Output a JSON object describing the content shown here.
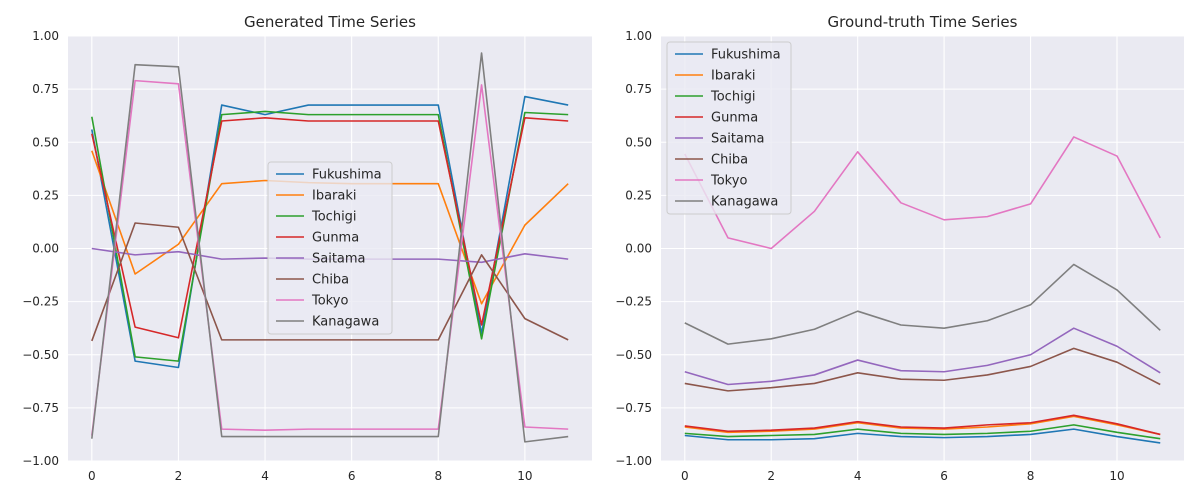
{
  "colors": {
    "Fukushima": "#1f77b4",
    "Ibaraki": "#ff7f0e",
    "Tochigi": "#2ca02c",
    "Gunma": "#d62728",
    "Saitama": "#9467bd",
    "Chiba": "#8c564b",
    "Tokyo": "#e377c2",
    "Kanagawa": "#7f7f7f"
  },
  "chart_data": [
    {
      "type": "line",
      "title": "Generated Time Series",
      "xlabel": "",
      "ylabel": "",
      "xlim": [
        -0.55,
        11.55
      ],
      "ylim": [
        -1.0,
        1.0
      ],
      "x_ticks": [
        0,
        2,
        4,
        6,
        8,
        10
      ],
      "y_ticks": [
        -1.0,
        -0.75,
        -0.5,
        -0.25,
        0.0,
        0.25,
        0.5,
        0.75,
        1.0
      ],
      "y_tick_labels": [
        "−1.00",
        "−0.75",
        "−0.50",
        "−0.25",
        "0.00",
        "0.25",
        "0.50",
        "0.75",
        "1.00"
      ],
      "grid": true,
      "legend_position": "center",
      "x": [
        0,
        1,
        2,
        3,
        4,
        5,
        6,
        7,
        8,
        9,
        10,
        11
      ],
      "series": [
        {
          "name": "Fukushima",
          "values": [
            0.56,
            -0.53,
            -0.56,
            0.675,
            0.63,
            0.675,
            0.675,
            0.675,
            0.675,
            -0.4,
            0.715,
            0.675
          ]
        },
        {
          "name": "Ibaraki",
          "values": [
            0.46,
            -0.12,
            0.02,
            0.305,
            0.32,
            0.31,
            0.305,
            0.305,
            0.305,
            -0.26,
            0.11,
            0.305
          ]
        },
        {
          "name": "Tochigi",
          "values": [
            0.62,
            -0.51,
            -0.53,
            0.63,
            0.645,
            0.63,
            0.63,
            0.63,
            0.63,
            -0.425,
            0.64,
            0.63
          ]
        },
        {
          "name": "Gunma",
          "values": [
            0.54,
            -0.37,
            -0.42,
            0.6,
            0.615,
            0.6,
            0.6,
            0.6,
            0.6,
            -0.36,
            0.615,
            0.6
          ]
        },
        {
          "name": "Saitama",
          "values": [
            0.0,
            -0.03,
            -0.015,
            -0.05,
            -0.045,
            -0.05,
            -0.05,
            -0.05,
            -0.05,
            -0.065,
            -0.025,
            -0.05
          ]
        },
        {
          "name": "Chiba",
          "values": [
            -0.435,
            0.12,
            0.1,
            -0.43,
            -0.43,
            -0.43,
            -0.43,
            -0.43,
            -0.43,
            -0.03,
            -0.33,
            -0.43
          ]
        },
        {
          "name": "Tokyo",
          "values": [
            -0.88,
            0.79,
            0.775,
            -0.85,
            -0.855,
            -0.85,
            -0.85,
            -0.85,
            -0.85,
            0.77,
            -0.84,
            -0.85
          ]
        },
        {
          "name": "Kanagawa",
          "values": [
            -0.895,
            0.865,
            0.855,
            -0.885,
            -0.885,
            -0.885,
            -0.885,
            -0.885,
            -0.885,
            0.92,
            -0.91,
            -0.885
          ]
        }
      ]
    },
    {
      "type": "line",
      "title": "Ground-truth Time Series",
      "xlabel": "",
      "ylabel": "",
      "xlim": [
        -0.55,
        11.55
      ],
      "ylim": [
        -1.0,
        1.0
      ],
      "x_ticks": [
        0,
        2,
        4,
        6,
        8,
        10
      ],
      "y_ticks": [
        -1.0,
        -0.75,
        -0.5,
        -0.25,
        0.0,
        0.25,
        0.5,
        0.75,
        1.0
      ],
      "y_tick_labels": [
        "−1.00",
        "−0.75",
        "−0.50",
        "−0.25",
        "0.00",
        "0.25",
        "0.50",
        "0.75",
        "1.00"
      ],
      "grid": true,
      "legend_position": "top-left",
      "x": [
        0,
        1,
        2,
        3,
        4,
        5,
        6,
        7,
        8,
        9,
        10,
        11
      ],
      "series": [
        {
          "name": "Fukushima",
          "values": [
            -0.88,
            -0.9,
            -0.9,
            -0.895,
            -0.87,
            -0.885,
            -0.89,
            -0.885,
            -0.875,
            -0.85,
            -0.885,
            -0.915
          ]
        },
        {
          "name": "Ibaraki",
          "values": [
            -0.84,
            -0.865,
            -0.86,
            -0.85,
            -0.82,
            -0.845,
            -0.85,
            -0.84,
            -0.825,
            -0.79,
            -0.83,
            -0.875
          ]
        },
        {
          "name": "Tochigi",
          "values": [
            -0.87,
            -0.885,
            -0.88,
            -0.875,
            -0.85,
            -0.87,
            -0.875,
            -0.87,
            -0.86,
            -0.83,
            -0.865,
            -0.895
          ]
        },
        {
          "name": "Gunma",
          "values": [
            -0.835,
            -0.86,
            -0.855,
            -0.845,
            -0.815,
            -0.84,
            -0.845,
            -0.83,
            -0.82,
            -0.785,
            -0.825,
            -0.875
          ]
        },
        {
          "name": "Saitama",
          "values": [
            -0.58,
            -0.64,
            -0.625,
            -0.595,
            -0.525,
            -0.575,
            -0.58,
            -0.55,
            -0.5,
            -0.375,
            -0.46,
            -0.585
          ]
        },
        {
          "name": "Chiba",
          "values": [
            -0.635,
            -0.67,
            -0.655,
            -0.635,
            -0.585,
            -0.615,
            -0.62,
            -0.595,
            -0.555,
            -0.47,
            -0.535,
            -0.64
          ]
        },
        {
          "name": "Tokyo",
          "values": [
            0.445,
            0.05,
            0.0,
            0.175,
            0.455,
            0.215,
            0.135,
            0.15,
            0.21,
            0.525,
            0.435,
            0.05
          ]
        },
        {
          "name": "Kanagawa",
          "values": [
            -0.35,
            -0.45,
            -0.425,
            -0.38,
            -0.295,
            -0.36,
            -0.375,
            -0.34,
            -0.265,
            -0.075,
            -0.195,
            -0.385
          ]
        }
      ]
    }
  ]
}
